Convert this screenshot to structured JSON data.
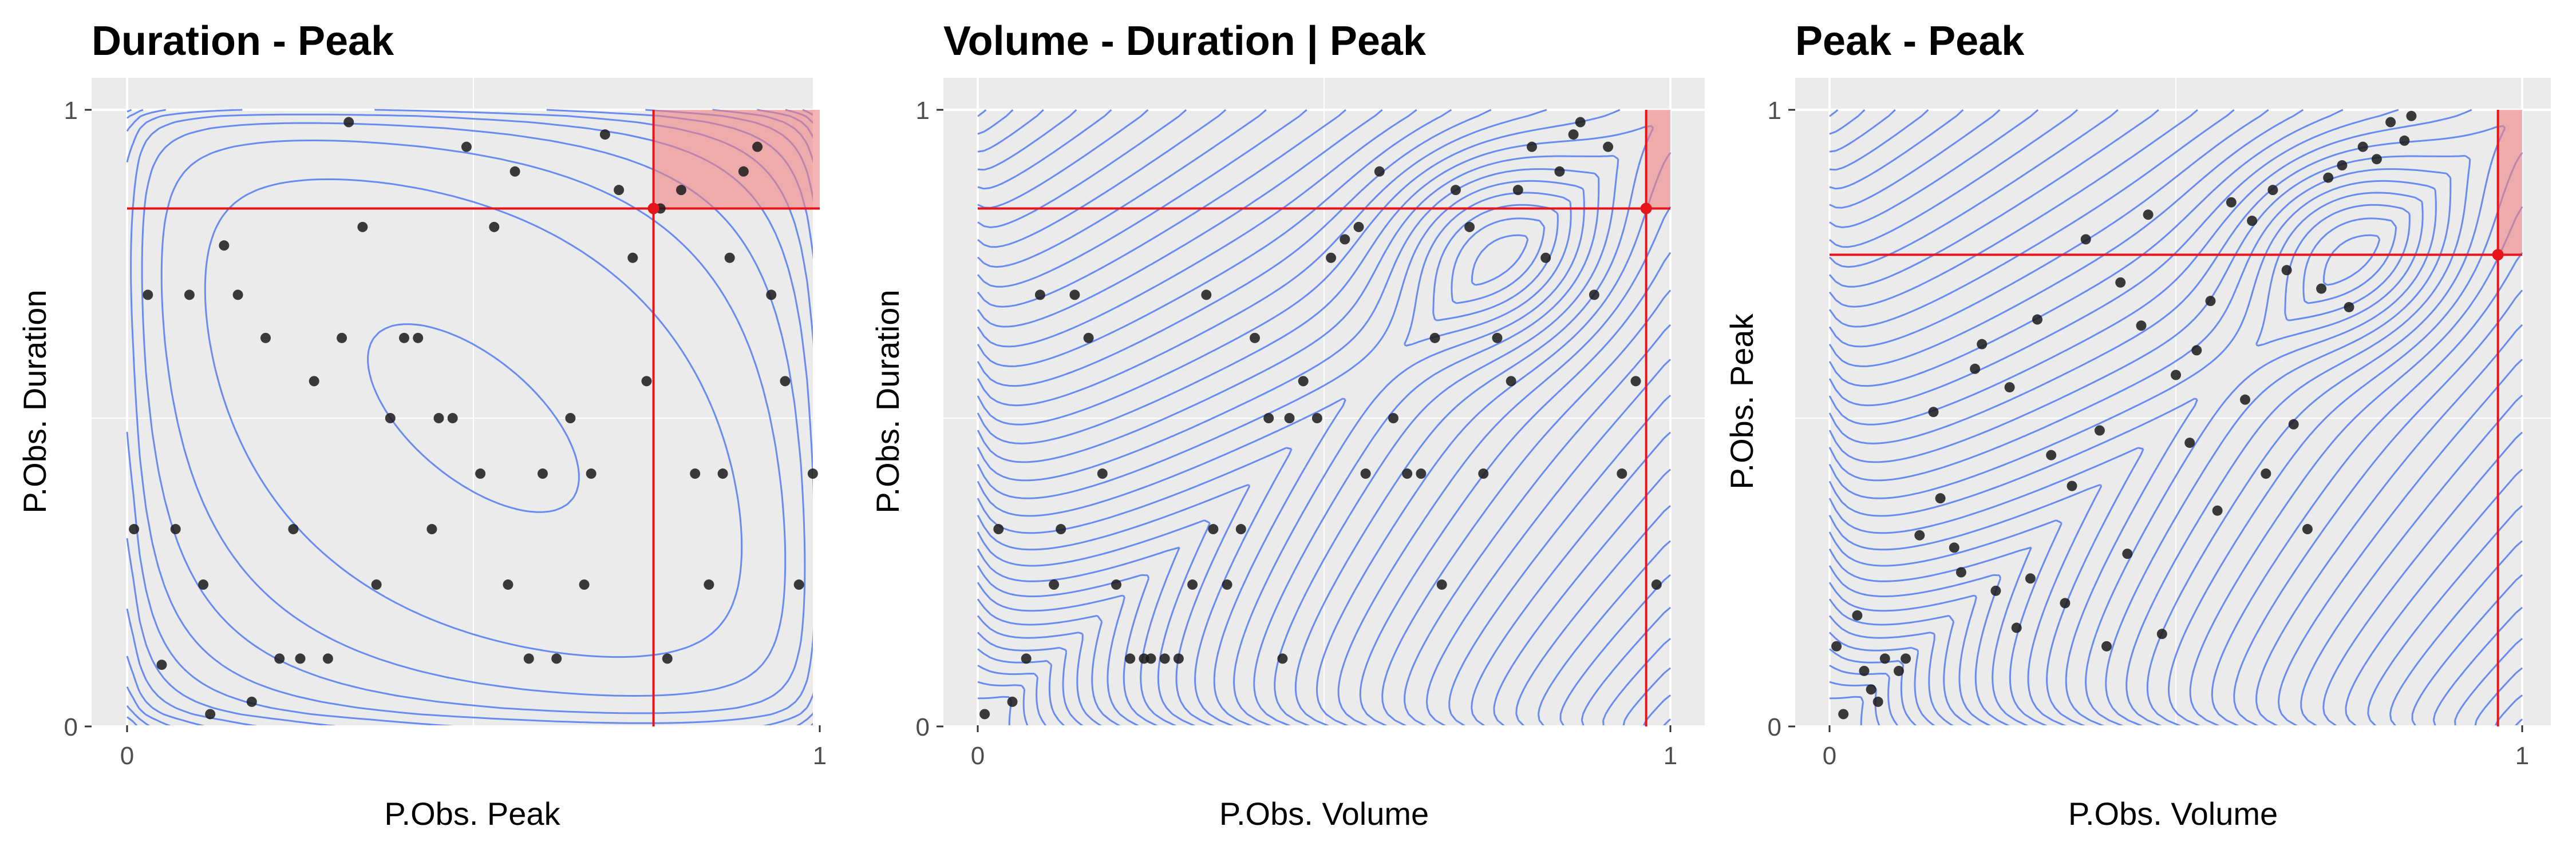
{
  "chart_data": [
    {
      "type": "scatter",
      "title": "Duration - Peak",
      "xlabel": "P.Obs. Peak",
      "ylabel": "P.Obs. Duration",
      "xlim": [
        0,
        1
      ],
      "ylim": [
        0,
        1
      ],
      "x_ticks": [
        "0",
        "1"
      ],
      "y_ticks": [
        "0",
        "1"
      ],
      "grid": true,
      "critical_point": {
        "x": 0.76,
        "y": 0.84
      },
      "contour_model": "saddle",
      "points": [
        {
          "x": 0.01,
          "y": 0.32
        },
        {
          "x": 0.03,
          "y": 0.7
        },
        {
          "x": 0.05,
          "y": 0.1
        },
        {
          "x": 0.07,
          "y": 0.32
        },
        {
          "x": 0.09,
          "y": 0.7
        },
        {
          "x": 0.11,
          "y": 0.23
        },
        {
          "x": 0.12,
          "y": 0.02
        },
        {
          "x": 0.14,
          "y": 0.78
        },
        {
          "x": 0.16,
          "y": 0.7
        },
        {
          "x": 0.18,
          "y": 0.04
        },
        {
          "x": 0.2,
          "y": 0.63
        },
        {
          "x": 0.22,
          "y": 0.11
        },
        {
          "x": 0.24,
          "y": 0.32
        },
        {
          "x": 0.25,
          "y": 0.11
        },
        {
          "x": 0.27,
          "y": 0.56
        },
        {
          "x": 0.29,
          "y": 0.11
        },
        {
          "x": 0.31,
          "y": 0.63
        },
        {
          "x": 0.32,
          "y": 0.98
        },
        {
          "x": 0.34,
          "y": 0.81
        },
        {
          "x": 0.36,
          "y": 0.23
        },
        {
          "x": 0.38,
          "y": 0.5
        },
        {
          "x": 0.4,
          "y": 0.63
        },
        {
          "x": 0.42,
          "y": 0.63
        },
        {
          "x": 0.44,
          "y": 0.32
        },
        {
          "x": 0.45,
          "y": 0.5
        },
        {
          "x": 0.47,
          "y": 0.5
        },
        {
          "x": 0.49,
          "y": 0.94
        },
        {
          "x": 0.51,
          "y": 0.41
        },
        {
          "x": 0.53,
          "y": 0.81
        },
        {
          "x": 0.55,
          "y": 0.23
        },
        {
          "x": 0.56,
          "y": 0.9
        },
        {
          "x": 0.58,
          "y": 0.11
        },
        {
          "x": 0.6,
          "y": 0.41
        },
        {
          "x": 0.62,
          "y": 0.11
        },
        {
          "x": 0.64,
          "y": 0.5
        },
        {
          "x": 0.66,
          "y": 0.23
        },
        {
          "x": 0.67,
          "y": 0.41
        },
        {
          "x": 0.69,
          "y": 0.96
        },
        {
          "x": 0.71,
          "y": 0.87
        },
        {
          "x": 0.73,
          "y": 0.76
        },
        {
          "x": 0.75,
          "y": 0.56
        },
        {
          "x": 0.77,
          "y": 0.84
        },
        {
          "x": 0.78,
          "y": 0.11
        },
        {
          "x": 0.8,
          "y": 0.87
        },
        {
          "x": 0.82,
          "y": 0.41
        },
        {
          "x": 0.84,
          "y": 0.23
        },
        {
          "x": 0.86,
          "y": 0.41
        },
        {
          "x": 0.87,
          "y": 0.76
        },
        {
          "x": 0.89,
          "y": 0.9
        },
        {
          "x": 0.91,
          "y": 0.94
        },
        {
          "x": 0.93,
          "y": 0.7
        },
        {
          "x": 0.95,
          "y": 0.56
        },
        {
          "x": 0.97,
          "y": 0.23
        },
        {
          "x": 0.99,
          "y": 0.41
        }
      ]
    },
    {
      "type": "scatter",
      "title": "Volume - Duration | Peak",
      "xlabel": "P.Obs. Volume",
      "ylabel": "P.Obs. Duration",
      "xlim": [
        0,
        1
      ],
      "ylim": [
        0,
        1
      ],
      "x_ticks": [
        "0",
        "1"
      ],
      "y_ticks": [
        "0",
        "1"
      ],
      "grid": true,
      "critical_point": {
        "x": 0.965,
        "y": 0.84
      },
      "contour_model": "positive-dependence",
      "points": [
        {
          "x": 0.01,
          "y": 0.02
        },
        {
          "x": 0.03,
          "y": 0.32
        },
        {
          "x": 0.05,
          "y": 0.04
        },
        {
          "x": 0.07,
          "y": 0.11
        },
        {
          "x": 0.09,
          "y": 0.7
        },
        {
          "x": 0.11,
          "y": 0.23
        },
        {
          "x": 0.12,
          "y": 0.32
        },
        {
          "x": 0.14,
          "y": 0.7
        },
        {
          "x": 0.16,
          "y": 0.63
        },
        {
          "x": 0.18,
          "y": 0.41
        },
        {
          "x": 0.2,
          "y": 0.23
        },
        {
          "x": 0.22,
          "y": 0.11
        },
        {
          "x": 0.24,
          "y": 0.11
        },
        {
          "x": 0.25,
          "y": 0.11
        },
        {
          "x": 0.27,
          "y": 0.11
        },
        {
          "x": 0.29,
          "y": 0.11
        },
        {
          "x": 0.31,
          "y": 0.23
        },
        {
          "x": 0.33,
          "y": 0.7
        },
        {
          "x": 0.34,
          "y": 0.32
        },
        {
          "x": 0.36,
          "y": 0.23
        },
        {
          "x": 0.38,
          "y": 0.32
        },
        {
          "x": 0.4,
          "y": 0.63
        },
        {
          "x": 0.42,
          "y": 0.5
        },
        {
          "x": 0.44,
          "y": 0.11
        },
        {
          "x": 0.45,
          "y": 0.5
        },
        {
          "x": 0.47,
          "y": 0.56
        },
        {
          "x": 0.49,
          "y": 0.5
        },
        {
          "x": 0.51,
          "y": 0.76
        },
        {
          "x": 0.53,
          "y": 0.79
        },
        {
          "x": 0.55,
          "y": 0.81
        },
        {
          "x": 0.56,
          "y": 0.41
        },
        {
          "x": 0.58,
          "y": 0.9
        },
        {
          "x": 0.6,
          "y": 0.5
        },
        {
          "x": 0.62,
          "y": 0.41
        },
        {
          "x": 0.64,
          "y": 0.41
        },
        {
          "x": 0.66,
          "y": 0.63
        },
        {
          "x": 0.67,
          "y": 0.23
        },
        {
          "x": 0.69,
          "y": 0.87
        },
        {
          "x": 0.71,
          "y": 0.81
        },
        {
          "x": 0.73,
          "y": 0.41
        },
        {
          "x": 0.75,
          "y": 0.63
        },
        {
          "x": 0.77,
          "y": 0.56
        },
        {
          "x": 0.78,
          "y": 0.87
        },
        {
          "x": 0.8,
          "y": 0.94
        },
        {
          "x": 0.82,
          "y": 0.76
        },
        {
          "x": 0.84,
          "y": 0.9
        },
        {
          "x": 0.86,
          "y": 0.96
        },
        {
          "x": 0.87,
          "y": 0.98
        },
        {
          "x": 0.89,
          "y": 0.7
        },
        {
          "x": 0.91,
          "y": 0.94
        },
        {
          "x": 0.93,
          "y": 0.41
        },
        {
          "x": 0.95,
          "y": 0.56
        },
        {
          "x": 0.965,
          "y": 0.84
        },
        {
          "x": 0.98,
          "y": 0.23
        }
      ]
    },
    {
      "type": "scatter",
      "title": "Peak - Peak",
      "xlabel": "P.Obs. Volume",
      "ylabel": "P.Obs. Peak",
      "xlim": [
        0,
        1
      ],
      "ylim": [
        0,
        1
      ],
      "x_ticks": [
        "0",
        "1"
      ],
      "y_ticks": [
        "0",
        "1"
      ],
      "grid": true,
      "critical_point": {
        "x": 0.965,
        "y": 0.765
      },
      "contour_model": "positive-dependence",
      "points": [
        {
          "x": 0.01,
          "y": 0.13
        },
        {
          "x": 0.02,
          "y": 0.02
        },
        {
          "x": 0.04,
          "y": 0.18
        },
        {
          "x": 0.05,
          "y": 0.09
        },
        {
          "x": 0.06,
          "y": 0.06
        },
        {
          "x": 0.07,
          "y": 0.04
        },
        {
          "x": 0.08,
          "y": 0.11
        },
        {
          "x": 0.1,
          "y": 0.09
        },
        {
          "x": 0.11,
          "y": 0.11
        },
        {
          "x": 0.13,
          "y": 0.31
        },
        {
          "x": 0.15,
          "y": 0.51
        },
        {
          "x": 0.16,
          "y": 0.37
        },
        {
          "x": 0.18,
          "y": 0.29
        },
        {
          "x": 0.19,
          "y": 0.25
        },
        {
          "x": 0.21,
          "y": 0.58
        },
        {
          "x": 0.22,
          "y": 0.62
        },
        {
          "x": 0.24,
          "y": 0.22
        },
        {
          "x": 0.26,
          "y": 0.55
        },
        {
          "x": 0.27,
          "y": 0.16
        },
        {
          "x": 0.29,
          "y": 0.24
        },
        {
          "x": 0.3,
          "y": 0.66
        },
        {
          "x": 0.32,
          "y": 0.44
        },
        {
          "x": 0.34,
          "y": 0.2
        },
        {
          "x": 0.35,
          "y": 0.39
        },
        {
          "x": 0.37,
          "y": 0.79
        },
        {
          "x": 0.39,
          "y": 0.48
        },
        {
          "x": 0.4,
          "y": 0.13
        },
        {
          "x": 0.42,
          "y": 0.72
        },
        {
          "x": 0.43,
          "y": 0.28
        },
        {
          "x": 0.45,
          "y": 0.65
        },
        {
          "x": 0.46,
          "y": 0.83
        },
        {
          "x": 0.48,
          "y": 0.15
        },
        {
          "x": 0.5,
          "y": 0.57
        },
        {
          "x": 0.52,
          "y": 0.46
        },
        {
          "x": 0.53,
          "y": 0.61
        },
        {
          "x": 0.55,
          "y": 0.69
        },
        {
          "x": 0.56,
          "y": 0.35
        },
        {
          "x": 0.58,
          "y": 0.85
        },
        {
          "x": 0.6,
          "y": 0.53
        },
        {
          "x": 0.61,
          "y": 0.82
        },
        {
          "x": 0.63,
          "y": 0.41
        },
        {
          "x": 0.64,
          "y": 0.87
        },
        {
          "x": 0.66,
          "y": 0.74
        },
        {
          "x": 0.67,
          "y": 0.49
        },
        {
          "x": 0.69,
          "y": 0.32
        },
        {
          "x": 0.71,
          "y": 0.71
        },
        {
          "x": 0.72,
          "y": 0.89
        },
        {
          "x": 0.74,
          "y": 0.91
        },
        {
          "x": 0.75,
          "y": 0.68
        },
        {
          "x": 0.77,
          "y": 0.94
        },
        {
          "x": 0.79,
          "y": 0.92
        },
        {
          "x": 0.81,
          "y": 0.98
        },
        {
          "x": 0.83,
          "y": 0.95
        },
        {
          "x": 0.84,
          "y": 0.99
        }
      ]
    }
  ]
}
